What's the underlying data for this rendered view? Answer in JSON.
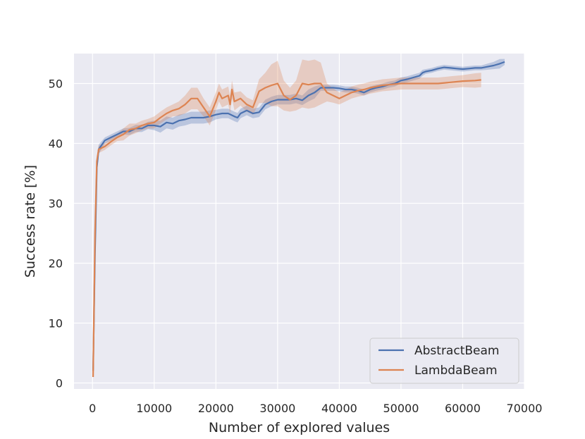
{
  "chart_data": {
    "type": "line",
    "title": "",
    "xlabel": "Number of explored values",
    "ylabel": "Success rate [%]",
    "xlim": [
      -3000,
      70000
    ],
    "ylim": [
      -1,
      55
    ],
    "x_ticks": [
      0,
      10000,
      20000,
      30000,
      40000,
      50000,
      60000,
      70000
    ],
    "y_ticks": [
      0,
      10,
      20,
      30,
      40,
      50
    ],
    "grid": true,
    "legend_position": "lower-right",
    "series": [
      {
        "name": "AbstractBeam",
        "color": "#4c72b0",
        "x": [
          100,
          400,
          700,
          1000,
          2000,
          3000,
          4000,
          5000,
          6000,
          7000,
          8000,
          9000,
          10000,
          11000,
          12000,
          13000,
          14000,
          15000,
          16000,
          17000,
          18000,
          19000,
          20000,
          21000,
          22000,
          23000,
          23500,
          24000,
          25000,
          26000,
          27000,
          28000,
          29000,
          30000,
          31000,
          32000,
          33000,
          34000,
          35000,
          36000,
          37000,
          38000,
          39000,
          40000,
          41000,
          42000,
          43000,
          44000,
          45000,
          46000,
          47000,
          48000,
          49000,
          50000,
          51000,
          52000,
          53000,
          53500,
          54000,
          55000,
          56000,
          57000,
          58000,
          59000,
          60000,
          61000,
          62000,
          63000,
          64000,
          65000,
          66000,
          66800
        ],
        "y": [
          2,
          22,
          36,
          39,
          40.5,
          41,
          41.5,
          42,
          42,
          42.5,
          42.5,
          43,
          43,
          42.8,
          43.5,
          43.3,
          43.8,
          44,
          44.3,
          44.3,
          44.3,
          44.5,
          44.8,
          45,
          45,
          44.5,
          44.3,
          45,
          45.5,
          45,
          45.2,
          46.5,
          47,
          47.3,
          47.3,
          47.3,
          47.5,
          47.2,
          48,
          48.5,
          49.3,
          49.3,
          49.3,
          49.2,
          49,
          49,
          48.8,
          48.5,
          49,
          49.3,
          49.5,
          49.8,
          50,
          50.5,
          50.7,
          51,
          51.3,
          51.8,
          52,
          52.2,
          52.5,
          52.7,
          52.6,
          52.5,
          52.4,
          52.5,
          52.6,
          52.6,
          52.8,
          53,
          53.3,
          53.6
        ],
        "band": [
          1,
          1,
          1.5,
          0.8,
          0.5,
          0.5,
          0.5,
          0.5,
          0.6,
          0.6,
          0.6,
          0.6,
          0.8,
          1,
          1,
          1,
          1,
          1,
          1,
          1,
          1,
          1,
          0.8,
          0.8,
          0.8,
          0.8,
          0.8,
          0.8,
          0.8,
          0.8,
          0.8,
          0.8,
          0.8,
          0.8,
          0.8,
          0.8,
          0.8,
          0.8,
          1,
          1,
          0.5,
          0.5,
          0.5,
          0.5,
          0.5,
          0.5,
          0.5,
          0.5,
          0.5,
          0.5,
          0.5,
          0.5,
          0.5,
          0.5,
          0.5,
          0.5,
          0.5,
          0.5,
          0.4,
          0.4,
          0.4,
          0.4,
          0.4,
          0.4,
          0.4,
          0.4,
          0.4,
          0.4,
          0.5,
          0.6,
          0.8,
          0.5
        ]
      },
      {
        "name": "LambdaBeam",
        "color": "#dd8452",
        "x": [
          100,
          400,
          700,
          1000,
          2000,
          3000,
          4000,
          5000,
          6000,
          7000,
          8000,
          9000,
          10000,
          11000,
          12000,
          13000,
          14000,
          15000,
          16000,
          17000,
          18000,
          19000,
          20000,
          20500,
          21000,
          22000,
          22300,
          22600,
          23000,
          24000,
          25000,
          26000,
          27000,
          28000,
          29000,
          30000,
          31000,
          32000,
          33000,
          34000,
          35000,
          36000,
          37000,
          38000,
          39000,
          40000,
          41000,
          42000,
          43000,
          44000,
          45000,
          46000,
          47000,
          48000,
          50000,
          52000,
          54000,
          56000,
          58000,
          60000,
          62000,
          63000
        ],
        "y": [
          1,
          25,
          37,
          39,
          39.5,
          40.3,
          41,
          41.5,
          42.3,
          42.5,
          43,
          43.3,
          43.5,
          44.3,
          45,
          45.5,
          45.8,
          46.5,
          47.5,
          47.5,
          46,
          44.5,
          47,
          48.5,
          47.5,
          48,
          46.5,
          49,
          47,
          47.5,
          46.5,
          46,
          48.7,
          49.3,
          49.7,
          50,
          48,
          47.3,
          48,
          50,
          49.8,
          50,
          50,
          48.5,
          48,
          47.5,
          48,
          48.5,
          48.8,
          49,
          49.3,
          49.5,
          49.7,
          49.8,
          50,
          50,
          50,
          50,
          50.2,
          50.4,
          50.5,
          50.6
        ],
        "band": [
          1,
          1,
          1,
          0.6,
          0.6,
          0.6,
          0.6,
          1,
          1,
          0.8,
          0.8,
          0.8,
          1,
          1,
          1,
          1,
          1.2,
          1.5,
          1.8,
          1.8,
          1.5,
          1.5,
          1.5,
          1.5,
          1.5,
          1.5,
          1.5,
          1.5,
          1.5,
          1.2,
          1.2,
          1.2,
          2,
          2.5,
          3.5,
          3.8,
          2.5,
          2,
          2.5,
          4,
          4,
          4,
          3.5,
          1.5,
          1.2,
          1,
          1,
          1,
          1,
          1,
          1,
          1,
          1,
          1,
          1,
          1,
          1,
          1,
          1,
          1,
          1.2,
          1.2
        ]
      }
    ]
  }
}
